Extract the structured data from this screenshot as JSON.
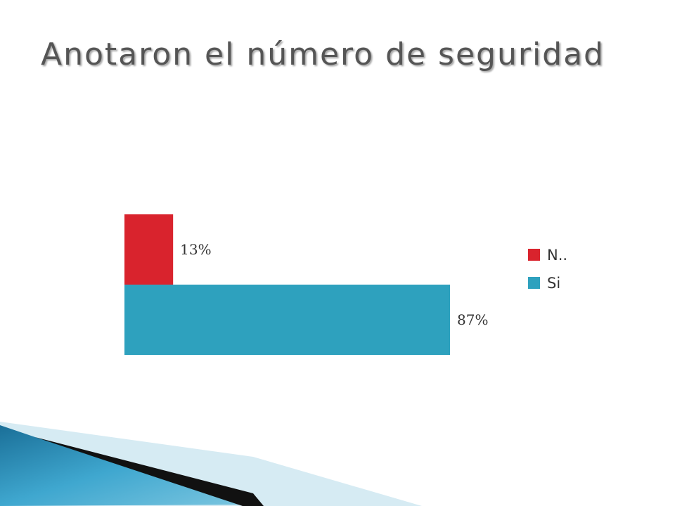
{
  "slide": {
    "title": "Anotaron el número de seguridad"
  },
  "chart_data": {
    "type": "bar",
    "orientation": "horizontal",
    "categories": [
      "N..",
      "Si"
    ],
    "values": [
      13,
      87
    ],
    "value_labels": [
      "13%",
      "87%"
    ],
    "colors": [
      "#d9232d",
      "#2ea1be"
    ],
    "unit": "%",
    "xlim": [
      0,
      100
    ],
    "grid": false,
    "legend": {
      "position": "right",
      "entries": [
        "N..",
        "Si"
      ]
    }
  },
  "colors": {
    "title_text": "#555555",
    "deco_blue": "#1f7fa8",
    "deco_light": "#cfe6f0",
    "deco_dark": "#111111"
  }
}
